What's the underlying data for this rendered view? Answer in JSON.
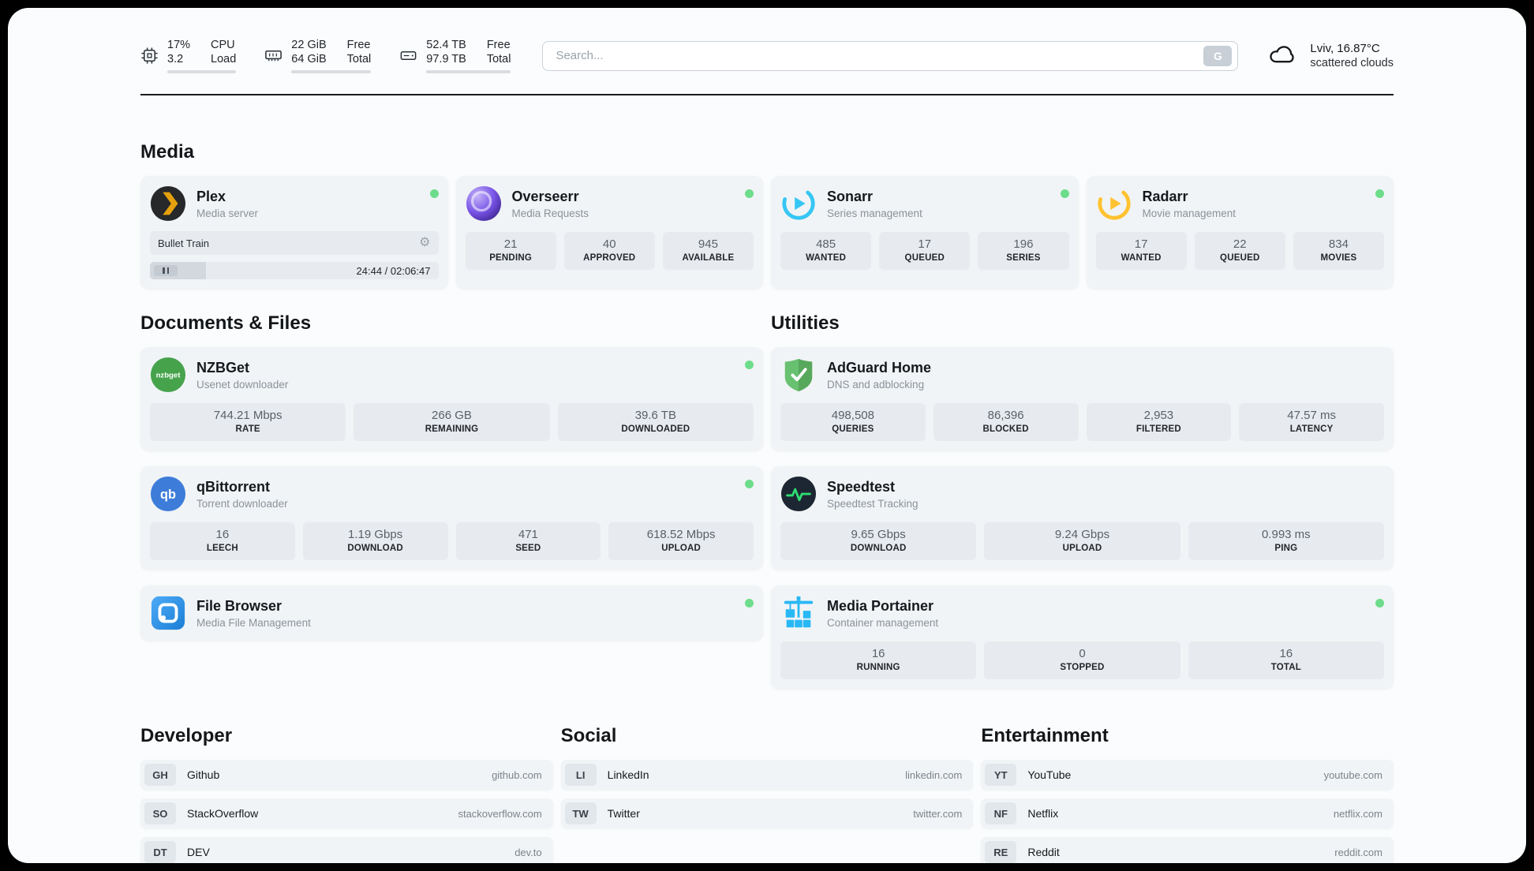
{
  "theme": {
    "page_bg": "#fbfcfd",
    "card_bg": "#f1f4f6",
    "tile_bg": "#e7ebef",
    "status_green": "#6ddc8b",
    "plex_amber": "#e5a00d",
    "overseerr_purple": "#6f4bd8",
    "sonarr_blue": "#36c6f4",
    "radarr_amber": "#ffc230",
    "nzbget_green": "#46a34c",
    "qbittorrent_blue": "#3d7dd9",
    "filebrowser_blue": "#2086e3",
    "adguard_green": "#68c170",
    "speedtest_green": "#2edd72",
    "portainer_blue": "#29b8f5"
  },
  "header": {
    "system": {
      "cpu": {
        "values": [
          "17%",
          "3.2"
        ],
        "labels": [
          "CPU",
          "Load"
        ],
        "bar_percent": 17
      },
      "ram": {
        "values": [
          "22 GiB",
          "64 GiB"
        ],
        "labels": [
          "Free",
          "Total"
        ],
        "bar_percent": 65
      },
      "disk": {
        "values": [
          "52.4 TB",
          "97.9 TB"
        ],
        "labels": [
          "Free",
          "Total"
        ],
        "bar_percent": 53
      }
    },
    "search": {
      "placeholder": "Search...",
      "engine_button": "G"
    },
    "weather": {
      "location": "Lviv, 16.87°C",
      "condition": "scattered clouds"
    }
  },
  "media": {
    "title": "Media",
    "plex": {
      "name": "Plex",
      "subtitle": "Media server",
      "now_playing": "Bullet Train",
      "time": "24:44 / 02:06:47",
      "progress_percent": 19.5
    },
    "overseerr": {
      "name": "Overseerr",
      "subtitle": "Media Requests",
      "stats": [
        {
          "value": "21",
          "label": "PENDING"
        },
        {
          "value": "40",
          "label": "APPROVED"
        },
        {
          "value": "945",
          "label": "AVAILABLE"
        }
      ]
    },
    "sonarr": {
      "name": "Sonarr",
      "subtitle": "Series management",
      "stats": [
        {
          "value": "485",
          "label": "WANTED"
        },
        {
          "value": "17",
          "label": "QUEUED"
        },
        {
          "value": "196",
          "label": "SERIES"
        }
      ]
    },
    "radarr": {
      "name": "Radarr",
      "subtitle": "Movie management",
      "stats": [
        {
          "value": "17",
          "label": "WANTED"
        },
        {
          "value": "22",
          "label": "QUEUED"
        },
        {
          "value": "834",
          "label": "MOVIES"
        }
      ]
    }
  },
  "documents": {
    "title": "Documents & Files",
    "nzbget": {
      "name": "NZBGet",
      "subtitle": "Usenet downloader",
      "stats": [
        {
          "value": "744.21 Mbps",
          "label": "RATE"
        },
        {
          "value": "266 GB",
          "label": "REMAINING"
        },
        {
          "value": "39.6 TB",
          "label": "DOWNLOADED"
        }
      ]
    },
    "qbittorrent": {
      "name": "qBittorrent",
      "subtitle": "Torrent downloader",
      "stats": [
        {
          "value": "16",
          "label": "LEECH"
        },
        {
          "value": "1.19 Gbps",
          "label": "DOWNLOAD"
        },
        {
          "value": "471",
          "label": "SEED"
        },
        {
          "value": "618.52 Mbps",
          "label": "UPLOAD"
        }
      ]
    },
    "filebrowser": {
      "name": "File Browser",
      "subtitle": "Media File Management"
    }
  },
  "utilities": {
    "title": "Utilities",
    "adguard": {
      "name": "AdGuard Home",
      "subtitle": "DNS and adblocking",
      "stats": [
        {
          "value": "498,508",
          "label": "QUERIES"
        },
        {
          "value": "86,396",
          "label": "BLOCKED"
        },
        {
          "value": "2,953",
          "label": "FILTERED"
        },
        {
          "value": "47.57 ms",
          "label": "LATENCY"
        }
      ]
    },
    "speedtest": {
      "name": "Speedtest",
      "subtitle": "Speedtest Tracking",
      "stats": [
        {
          "value": "9.65 Gbps",
          "label": "DOWNLOAD"
        },
        {
          "value": "9.24 Gbps",
          "label": "UPLOAD"
        },
        {
          "value": "0.993 ms",
          "label": "PING"
        }
      ]
    },
    "portainer": {
      "name": "Media Portainer",
      "subtitle": "Container management",
      "stats": [
        {
          "value": "16",
          "label": "RUNNING"
        },
        {
          "value": "0",
          "label": "STOPPED"
        },
        {
          "value": "16",
          "label": "TOTAL"
        }
      ]
    }
  },
  "bookmarks": [
    {
      "title": "Developer",
      "items": [
        {
          "abbr": "GH",
          "name": "Github",
          "domain": "github.com"
        },
        {
          "abbr": "SO",
          "name": "StackOverflow",
          "domain": "stackoverflow.com"
        },
        {
          "abbr": "DT",
          "name": "DEV",
          "domain": "dev.to"
        }
      ]
    },
    {
      "title": "Social",
      "items": [
        {
          "abbr": "LI",
          "name": "LinkedIn",
          "domain": "linkedin.com"
        },
        {
          "abbr": "TW",
          "name": "Twitter",
          "domain": "twitter.com"
        }
      ]
    },
    {
      "title": "Entertainment",
      "items": [
        {
          "abbr": "YT",
          "name": "YouTube",
          "domain": "youtube.com"
        },
        {
          "abbr": "NF",
          "name": "Netflix",
          "domain": "netflix.com"
        },
        {
          "abbr": "RE",
          "name": "Reddit",
          "domain": "reddit.com"
        }
      ]
    }
  ],
  "icons": {
    "nzbget_label": "nzbget",
    "qbittorrent_label": "qb",
    "gear_glyph": "⚙"
  }
}
